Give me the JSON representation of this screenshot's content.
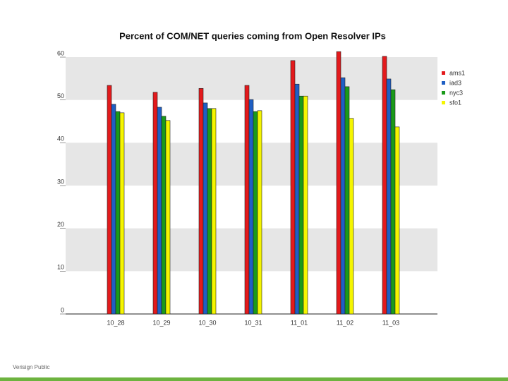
{
  "chart_data": {
    "type": "bar",
    "title": "Percent of COM/NET queries coming from Open Resolver IPs",
    "categories": [
      "10_28",
      "10_29",
      "10_30",
      "10_31",
      "11_01",
      "11_02",
      "11_03"
    ],
    "series": [
      {
        "name": "ams1",
        "color": "#e31a1c",
        "values": [
          53.4,
          51.8,
          52.7,
          53.4,
          59.2,
          61.3,
          60.2
        ]
      },
      {
        "name": "iad3",
        "color": "#1f5fc4",
        "values": [
          49.0,
          48.3,
          49.3,
          50.1,
          53.7,
          55.2,
          54.9
        ]
      },
      {
        "name": "nyc3",
        "color": "#1a9a1a",
        "values": [
          47.3,
          46.2,
          48.0,
          47.3,
          50.9,
          53.1,
          52.4
        ]
      },
      {
        "name": "sfo1",
        "color": "#f5f500",
        "values": [
          47.0,
          45.2,
          48.0,
          47.5,
          50.9,
          45.7,
          43.7
        ]
      }
    ],
    "ylim": [
      0,
      62
    ],
    "yticks": [
      0,
      10,
      20,
      30,
      40,
      50,
      60
    ],
    "grid": true,
    "legend": "right"
  },
  "footer": "Verisign Public"
}
